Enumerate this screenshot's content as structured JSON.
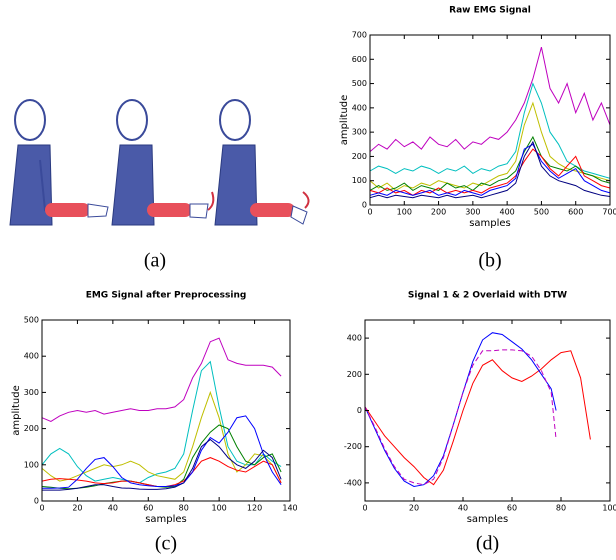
{
  "illustration": {
    "label": "(a)"
  },
  "chart_data": [
    {
      "type": "line",
      "title": "Raw EMG Signal",
      "label": "(b)",
      "xlabel": "samples",
      "ylabel": "amplitude",
      "xlim": [
        0,
        700
      ],
      "ylim": [
        0,
        700
      ],
      "xticks": [
        0,
        100,
        200,
        300,
        400,
        500,
        600,
        700
      ],
      "yticks": [
        0,
        100,
        200,
        300,
        400,
        500,
        600,
        700
      ],
      "x": [
        0,
        25,
        50,
        75,
        100,
        125,
        150,
        175,
        200,
        225,
        250,
        275,
        300,
        325,
        350,
        375,
        400,
        425,
        450,
        475,
        500,
        525,
        550,
        575,
        600,
        625,
        650,
        675,
        700
      ],
      "series": [
        {
          "color": "#bf00bf",
          "values": [
            220,
            250,
            230,
            270,
            240,
            260,
            230,
            280,
            250,
            240,
            270,
            230,
            260,
            250,
            280,
            270,
            300,
            350,
            420,
            520,
            650,
            480,
            420,
            500,
            380,
            460,
            350,
            420,
            330
          ]
        },
        {
          "color": "#00bfbf",
          "values": [
            140,
            160,
            150,
            130,
            150,
            140,
            160,
            150,
            130,
            150,
            140,
            160,
            130,
            150,
            140,
            160,
            170,
            220,
            380,
            500,
            420,
            300,
            250,
            180,
            160,
            140,
            130,
            120,
            110
          ]
        },
        {
          "color": "#bfbf00",
          "values": [
            100,
            70,
            90,
            60,
            80,
            70,
            90,
            80,
            100,
            90,
            80,
            70,
            90,
            80,
            100,
            120,
            130,
            180,
            330,
            420,
            300,
            200,
            170,
            150,
            140,
            130,
            120,
            110,
            100
          ]
        },
        {
          "color": "#008000",
          "values": [
            60,
            80,
            60,
            70,
            90,
            60,
            80,
            70,
            60,
            90,
            70,
            80,
            60,
            90,
            80,
            100,
            110,
            140,
            220,
            280,
            200,
            160,
            150,
            140,
            160,
            130,
            120,
            100,
            90
          ]
        },
        {
          "color": "#ff0000",
          "values": [
            60,
            50,
            70,
            50,
            60,
            40,
            60,
            50,
            70,
            50,
            60,
            50,
            60,
            50,
            70,
            80,
            90,
            120,
            180,
            230,
            200,
            150,
            120,
            160,
            200,
            120,
            100,
            80,
            70
          ]
        },
        {
          "color": "#0000ff",
          "values": [
            40,
            50,
            40,
            60,
            50,
            40,
            50,
            60,
            40,
            50,
            40,
            60,
            50,
            40,
            60,
            70,
            80,
            110,
            230,
            250,
            180,
            140,
            110,
            130,
            150,
            100,
            80,
            60,
            50
          ]
        },
        {
          "color": "#000080",
          "values": [
            30,
            40,
            30,
            40,
            35,
            30,
            40,
            35,
            30,
            40,
            30,
            35,
            40,
            30,
            40,
            50,
            60,
            90,
            200,
            260,
            160,
            120,
            100,
            90,
            80,
            60,
            50,
            40,
            35
          ]
        }
      ]
    },
    {
      "type": "line",
      "title": "EMG Signal after Preprocessing",
      "label": "(c)",
      "xlabel": "samples",
      "ylabel": "amplitude",
      "xlim": [
        0,
        140
      ],
      "ylim": [
        0,
        500
      ],
      "xticks": [
        0,
        20,
        40,
        60,
        80,
        100,
        120,
        140
      ],
      "yticks": [
        0,
        100,
        200,
        300,
        400,
        500
      ],
      "x": [
        0,
        5,
        10,
        15,
        20,
        25,
        30,
        35,
        40,
        45,
        50,
        55,
        60,
        65,
        70,
        75,
        80,
        85,
        90,
        95,
        100,
        105,
        110,
        115,
        120,
        125,
        130,
        135
      ],
      "series": [
        {
          "color": "#bf00bf",
          "values": [
            230,
            220,
            235,
            245,
            250,
            245,
            250,
            240,
            245,
            250,
            255,
            250,
            250,
            255,
            255,
            260,
            280,
            340,
            380,
            440,
            450,
            390,
            380,
            375,
            375,
            375,
            370,
            345
          ]
        },
        {
          "color": "#00bfbf",
          "values": [
            100,
            130,
            145,
            130,
            95,
            70,
            55,
            60,
            65,
            60,
            55,
            50,
            65,
            75,
            80,
            90,
            130,
            250,
            360,
            385,
            260,
            150,
            110,
            100,
            100,
            130,
            110,
            95
          ]
        },
        {
          "color": "#bfbf00",
          "values": [
            90,
            70,
            55,
            60,
            70,
            80,
            90,
            100,
            95,
            100,
            110,
            100,
            80,
            70,
            65,
            60,
            80,
            150,
            230,
            300,
            230,
            130,
            80,
            100,
            130,
            125,
            100,
            50
          ]
        },
        {
          "color": "#008000",
          "values": [
            40,
            38,
            35,
            34,
            35,
            38,
            42,
            48,
            52,
            55,
            55,
            50,
            45,
            40,
            38,
            40,
            60,
            120,
            160,
            190,
            210,
            200,
            150,
            110,
            100,
            120,
            130,
            80
          ]
        },
        {
          "color": "#ff0000",
          "values": [
            55,
            60,
            62,
            60,
            58,
            55,
            50,
            48,
            50,
            55,
            55,
            50,
            45,
            40,
            40,
            45,
            55,
            80,
            110,
            120,
            110,
            95,
            85,
            80,
            95,
            110,
            100,
            50
          ]
        },
        {
          "color": "#0000ff",
          "values": [
            35,
            35,
            36,
            38,
            60,
            90,
            115,
            120,
            95,
            65,
            50,
            45,
            42,
            40,
            40,
            42,
            50,
            80,
            140,
            175,
            160,
            190,
            230,
            235,
            200,
            130,
            80,
            45
          ]
        },
        {
          "color": "#000080",
          "values": [
            30,
            30,
            30,
            32,
            35,
            40,
            45,
            45,
            40,
            36,
            35,
            33,
            32,
            32,
            34,
            38,
            50,
            90,
            150,
            170,
            150,
            120,
            100,
            90,
            110,
            140,
            120,
            60
          ]
        }
      ]
    },
    {
      "type": "line",
      "title": "Signal 1 & 2 Overlaid with DTW",
      "label": "(d)",
      "xlabel": "samples",
      "xlim": [
        0,
        100
      ],
      "ylim": [
        -500,
        500
      ],
      "xticks": [
        0,
        20,
        40,
        60,
        80,
        100
      ],
      "yticks": [
        -400,
        -200,
        0,
        200,
        400
      ],
      "series": [
        {
          "color": "#ff0000",
          "x": [
            0,
            4,
            8,
            12,
            16,
            20,
            24,
            28,
            32,
            36,
            40,
            44,
            48,
            52,
            56,
            60,
            64,
            68,
            72,
            76,
            80,
            84,
            88,
            92
          ],
          "values": [
            20,
            -60,
            -140,
            -200,
            -260,
            -310,
            -370,
            -410,
            -330,
            -170,
            0,
            150,
            250,
            280,
            220,
            180,
            160,
            190,
            230,
            280,
            320,
            330,
            180,
            -160
          ]
        },
        {
          "color": "#0000ff",
          "x": [
            0,
            4,
            8,
            12,
            16,
            20,
            24,
            28,
            32,
            36,
            40,
            44,
            48,
            52,
            56,
            60,
            64,
            68,
            72,
            76,
            78
          ],
          "values": [
            20,
            -100,
            -220,
            -320,
            -390,
            -420,
            -410,
            -360,
            -250,
            -80,
            100,
            270,
            390,
            430,
            420,
            380,
            340,
            280,
            200,
            120,
            0
          ]
        },
        {
          "color": "#bf00bf",
          "linestyle": "dashed",
          "x": [
            0,
            4,
            8,
            12,
            16,
            20,
            24,
            28,
            32,
            36,
            40,
            44,
            48,
            52,
            56,
            60,
            64,
            68,
            72,
            76,
            78
          ],
          "values": [
            20,
            -90,
            -210,
            -310,
            -380,
            -400,
            -410,
            -380,
            -260,
            -80,
            100,
            250,
            330,
            330,
            335,
            335,
            330,
            300,
            220,
            100,
            -160
          ]
        }
      ]
    }
  ]
}
